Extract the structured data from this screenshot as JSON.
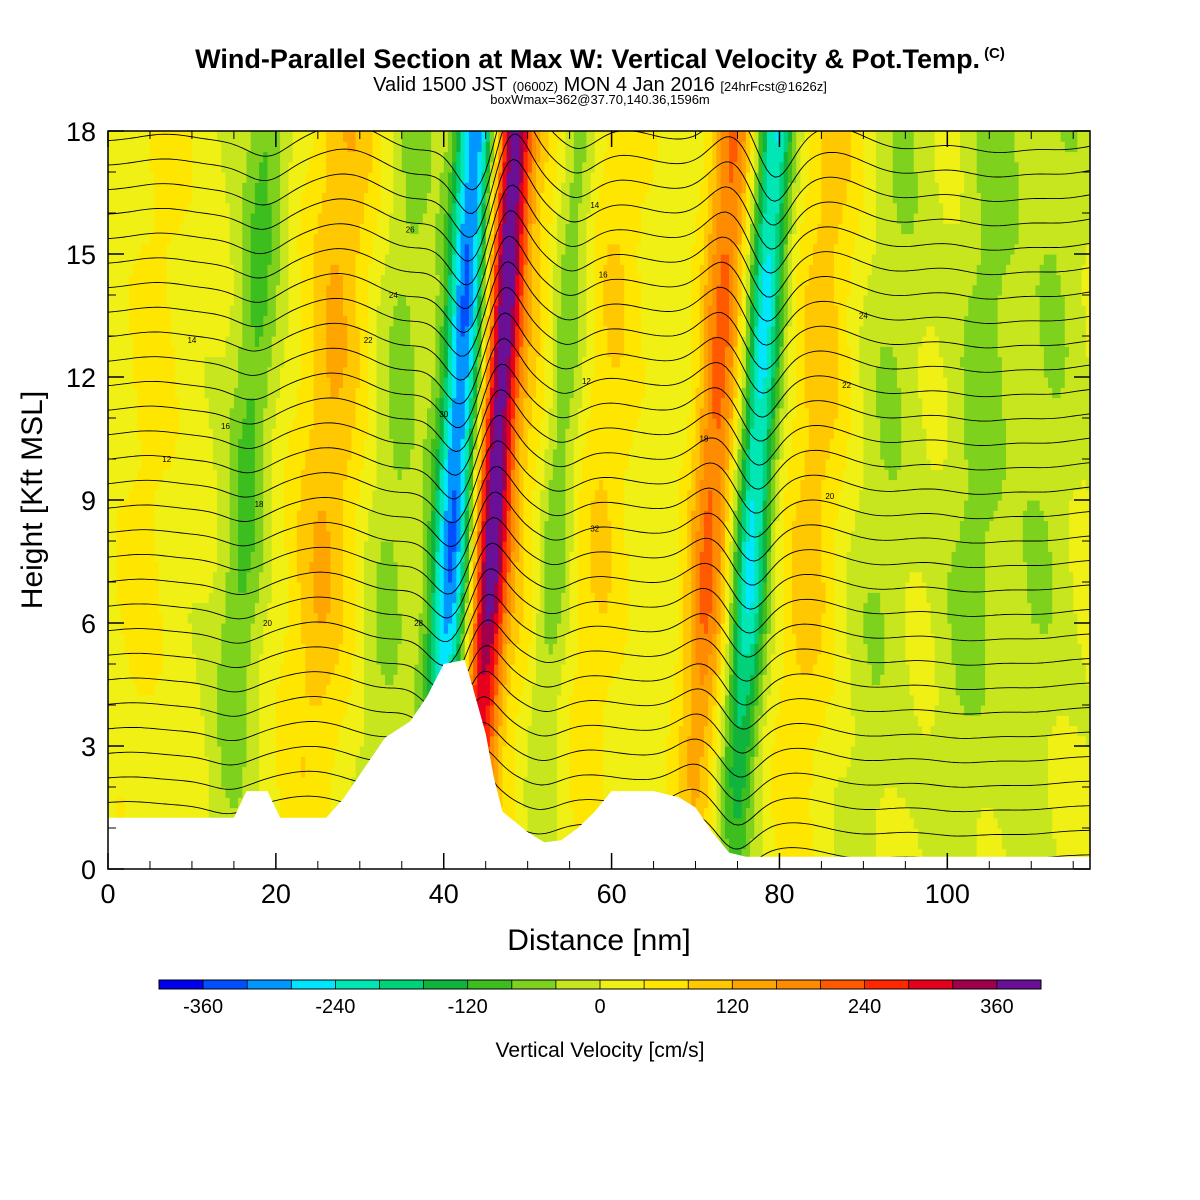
{
  "header": {
    "title": "Wind-Parallel Section at Max W: Vertical Velocity & Pot.Temp.",
    "copyright": "(C)",
    "valid_prefix": "Valid 1500 JST",
    "valid_utc": "(0600Z)",
    "valid_date": "MON 4 Jan 2016",
    "forecast": "[24hrFcst@1626z]",
    "box_info": "boxWmax=362@37.70,140.36,1596m"
  },
  "chart_data": {
    "type": "heatmap",
    "xlabel": "Distance [nm]",
    "ylabel": "Height [Kft MSL]",
    "xlim": [
      0,
      117
    ],
    "ylim": [
      0,
      18
    ],
    "xticks": [
      0,
      20,
      40,
      60,
      80,
      100
    ],
    "yticks": [
      0,
      3,
      6,
      9,
      12,
      15,
      18
    ],
    "colorbar": {
      "label": "Vertical Velocity [cm/s]",
      "ticks": [
        "-360",
        "-240",
        "-120",
        "0",
        "120",
        "240",
        "360"
      ],
      "levels": [
        -400,
        -360,
        -320,
        -280,
        -240,
        -200,
        -160,
        -120,
        -80,
        -40,
        0,
        40,
        80,
        120,
        160,
        200,
        240,
        280,
        320,
        360,
        400
      ],
      "colors": [
        "#0000ee",
        "#0050ff",
        "#0096ff",
        "#00e6ff",
        "#00e6b4",
        "#00d27a",
        "#10b43c",
        "#3cbe1e",
        "#7ed21e",
        "#c8e61e",
        "#f0f014",
        "#ffe600",
        "#ffc800",
        "#ffa500",
        "#ff8c00",
        "#ff5a00",
        "#ff2800",
        "#e6001e",
        "#a0004b",
        "#6a1096"
      ]
    },
    "velocity_bands": [
      {
        "x": 43.8,
        "w": 2.4,
        "value": -330
      },
      {
        "x": 48.5,
        "w": 2.2,
        "value": 380
      },
      {
        "x": 52.5,
        "w": 3.0,
        "value": 60
      },
      {
        "x": 56.0,
        "w": 2.2,
        "value": -90
      },
      {
        "x": 61.5,
        "w": 3.5,
        "value": 70
      },
      {
        "x": 74.5,
        "w": 2.6,
        "value": 200
      },
      {
        "x": 79.5,
        "w": 2.2,
        "value": -260
      },
      {
        "x": 86.5,
        "w": 3.5,
        "value": 90
      },
      {
        "x": 19.0,
        "w": 2.5,
        "value": -100
      },
      {
        "x": 28.5,
        "w": 4.0,
        "value": 110
      },
      {
        "x": 36.5,
        "w": 3.0,
        "value": -60
      },
      {
        "x": 7.0,
        "w": 3.5,
        "value": 45
      },
      {
        "x": 95.0,
        "w": 3.5,
        "value": -50
      },
      {
        "x": 106.0,
        "w": 3.5,
        "value": -70
      },
      {
        "x": 114.0,
        "w": 3.5,
        "value": -50
      }
    ],
    "theta_contour_labels": [
      "12",
      "14",
      "16",
      "18",
      "20",
      "22",
      "24",
      "26",
      "28",
      "30",
      "32"
    ],
    "terrain": [
      [
        0,
        1.25
      ],
      [
        15,
        1.25
      ],
      [
        16.5,
        1.9
      ],
      [
        19,
        1.9
      ],
      [
        20.5,
        1.25
      ],
      [
        26,
        1.25
      ],
      [
        28,
        1.7
      ],
      [
        30,
        2.3
      ],
      [
        31,
        2.6
      ],
      [
        33,
        3.2
      ],
      [
        36,
        3.6
      ],
      [
        38,
        4.2
      ],
      [
        39,
        4.6
      ],
      [
        40,
        5.0
      ],
      [
        42.5,
        5.1
      ],
      [
        43.5,
        4.4
      ],
      [
        45,
        3.3
      ],
      [
        46,
        2.2
      ],
      [
        47,
        1.4
      ],
      [
        50,
        0.9
      ],
      [
        52,
        0.65
      ],
      [
        54,
        0.7
      ],
      [
        56,
        1.0
      ],
      [
        58,
        1.4
      ],
      [
        60,
        1.9
      ],
      [
        65,
        1.9
      ],
      [
        68,
        1.75
      ],
      [
        70,
        1.5
      ],
      [
        72,
        0.9
      ],
      [
        74,
        0.4
      ],
      [
        76,
        0.3
      ],
      [
        117,
        0.3
      ]
    ]
  }
}
